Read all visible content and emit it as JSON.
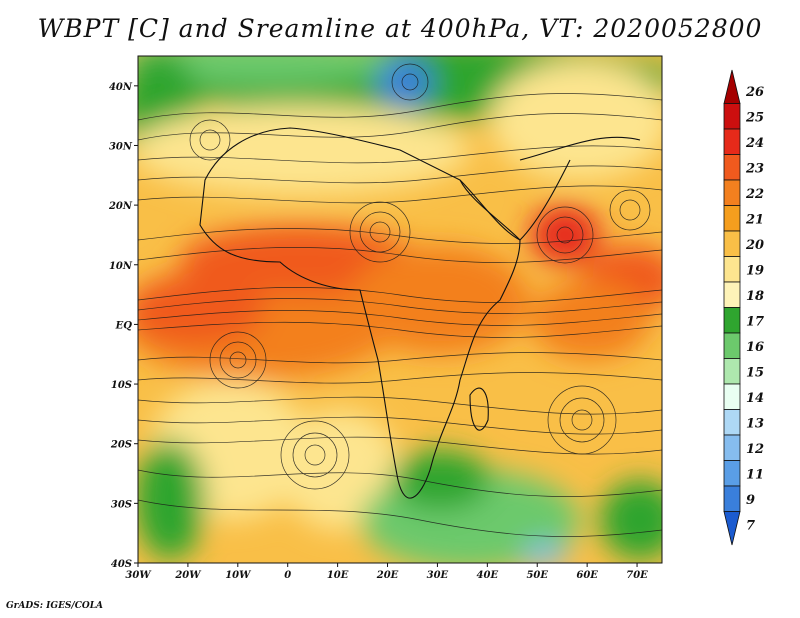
{
  "title": "WBPT [C] and Sreamline at 400hPa, VT: 2020052800",
  "credit": "GrADS: IGES/COLA",
  "lon_labels": [
    "30W",
    "20W",
    "10W",
    "0",
    "10E",
    "20E",
    "30E",
    "40E",
    "50E",
    "60E",
    "70E"
  ],
  "lon_values": [
    -30,
    -20,
    -10,
    0,
    10,
    20,
    30,
    40,
    50,
    60,
    70
  ],
  "lat_labels": [
    "40N",
    "30N",
    "20N",
    "10N",
    "EQ",
    "10S",
    "20S",
    "30S",
    "40S"
  ],
  "lat_values": [
    40,
    30,
    20,
    10,
    0,
    -10,
    -20,
    -30,
    -40
  ],
  "map_extent": {
    "lon": [
      -30,
      75
    ],
    "lat": [
      -40,
      45
    ]
  },
  "colorbar": {
    "labels": [
      "26",
      "25",
      "24",
      "23",
      "22",
      "21",
      "20",
      "19",
      "18",
      "17",
      "16",
      "15",
      "14",
      "13",
      "12",
      "11",
      "9",
      "7"
    ],
    "colors": [
      "#a50000",
      "#cc0f0f",
      "#e62a1a",
      "#f05a1e",
      "#f3801f",
      "#f59e1e",
      "#f9bf47",
      "#fde58f",
      "#fef3b8",
      "#2fa52f",
      "#6cc96c",
      "#aee8ae",
      "#e9fff2",
      "#aed8f5",
      "#86bdef",
      "#5a9ee6",
      "#3a7fdb",
      "#1b5bd0"
    ]
  },
  "field_colors": {
    "hot": "#f05a1e",
    "warm": "#f3801f",
    "mild": "#f9bf47",
    "cool": "#fde58f",
    "green": "#2fa52f",
    "lightgreen": "#6cc96c",
    "blue": "#3a7fdb"
  }
}
